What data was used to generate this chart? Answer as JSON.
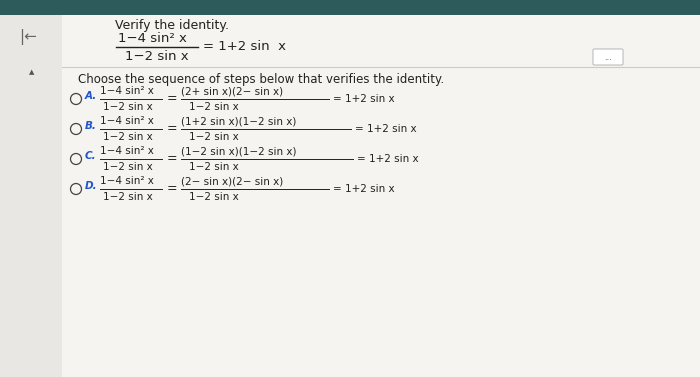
{
  "bg_color": "#c8c8c8",
  "panel_color": "#f5f4f0",
  "left_panel_color": "#e8e7e3",
  "title": "Verify the identity.",
  "question": "Choose the sequence of steps below that verifies the identity.",
  "options": [
    {
      "label": "A.",
      "lhs_num": "1−4 sin² x",
      "lhs_den": "1−2 sin x",
      "rhs_num": "(2+ sin x)(2− sin x)",
      "rhs_den": "1−2 sin x",
      "rhs_end": "= 1+2 sin x"
    },
    {
      "label": "B.",
      "lhs_num": "1−4 sin² x",
      "lhs_den": "1−2 sin x",
      "rhs_num": "(1+2 sin x)(1−2 sin x)",
      "rhs_den": "1−2 sin x",
      "rhs_end": "= 1+2 sin x"
    },
    {
      "label": "C.",
      "lhs_num": "1−4 sin² x",
      "lhs_den": "1−2 sin x",
      "rhs_num": "(1−2 sin x)(1−2 sin x)",
      "rhs_den": "1−2 sin x",
      "rhs_end": "= 1+2 sin x"
    },
    {
      "label": "D.",
      "lhs_num": "1−4 sin² x",
      "lhs_den": "1−2 sin x",
      "rhs_num": "(2− sin x)(2− sin x)",
      "rhs_den": "1−2 sin x",
      "rhs_end": "= 1+2 sin x"
    }
  ],
  "text_color": "#222222",
  "option_label_color": "#2255cc",
  "separator_color": "#cccccc",
  "top_bar_color": "#2d5a5a",
  "arrow_color": "#666666",
  "small_triangle_color": "#555555"
}
